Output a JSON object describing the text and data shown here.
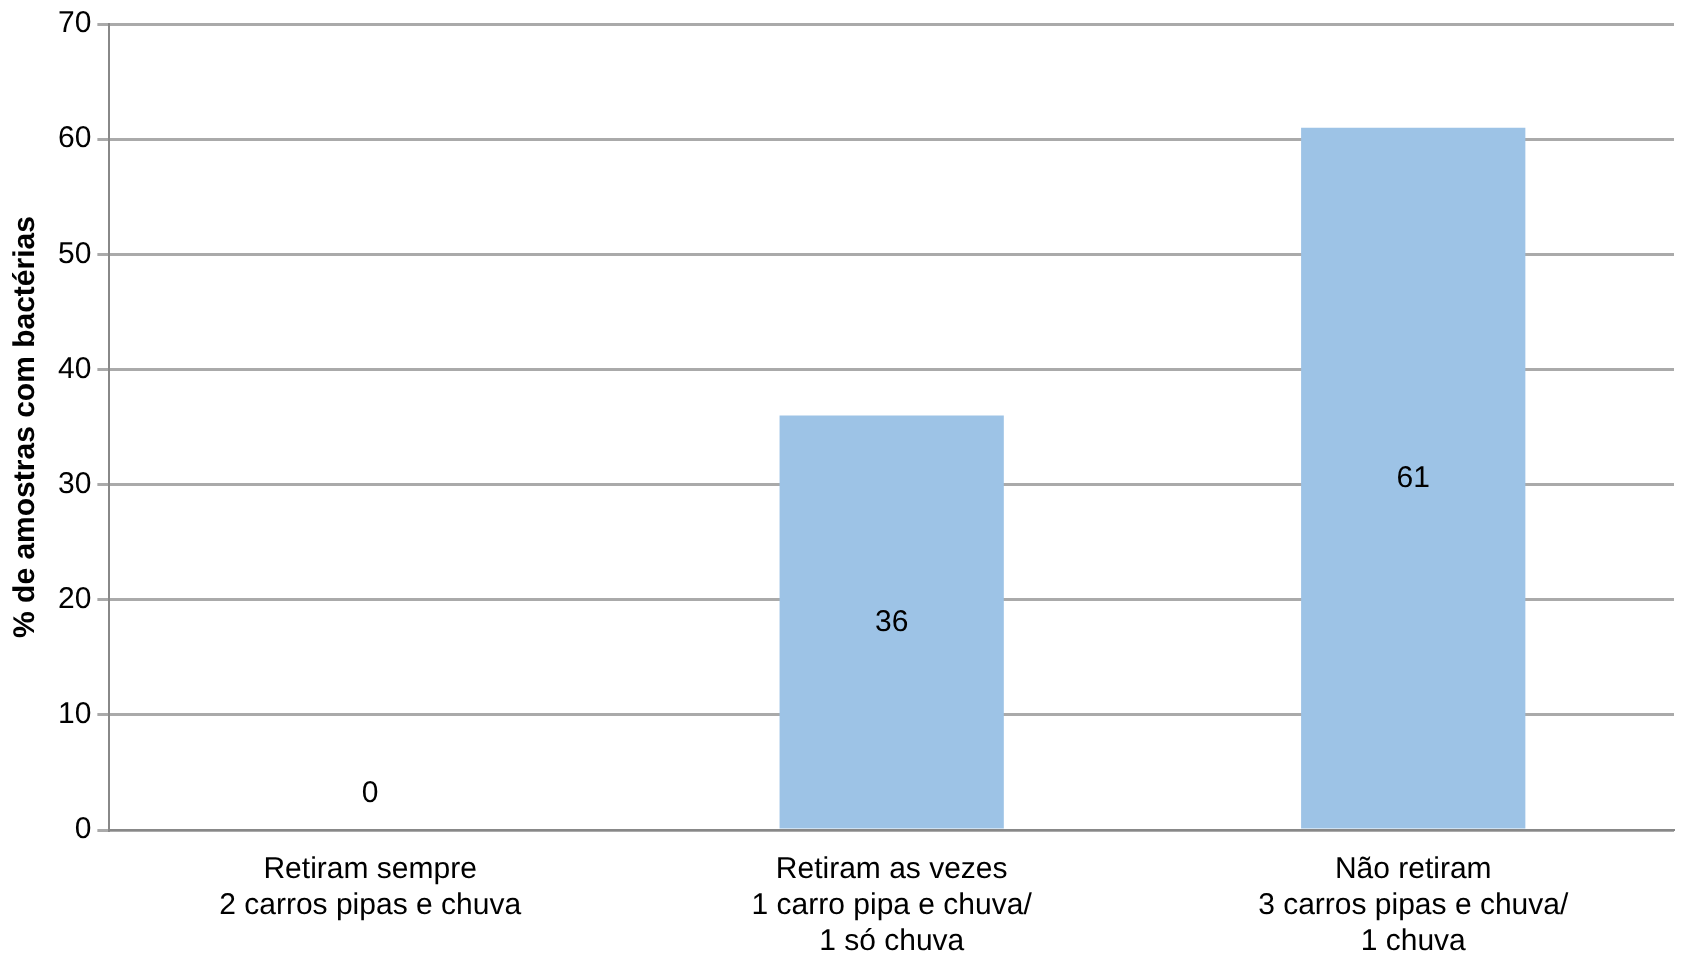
{
  "chart_data": {
    "type": "bar",
    "ylabel": "% de amostras com bactérias",
    "categories": [
      "Retiram sempre\n2 carros pipas e chuva",
      "Retiram as vezes\n1 carro pipa e chuva/\n1 só chuva",
      "Não retiram\n3 carros pipas e chuva/\n1 chuva"
    ],
    "values": [
      0,
      36,
      61
    ],
    "color": "#9dc3e6",
    "ylim": [
      0,
      70
    ],
    "yticks": [
      0,
      10,
      20,
      30,
      40,
      50,
      60,
      70
    ],
    "grid": "y",
    "data_labels": true
  }
}
